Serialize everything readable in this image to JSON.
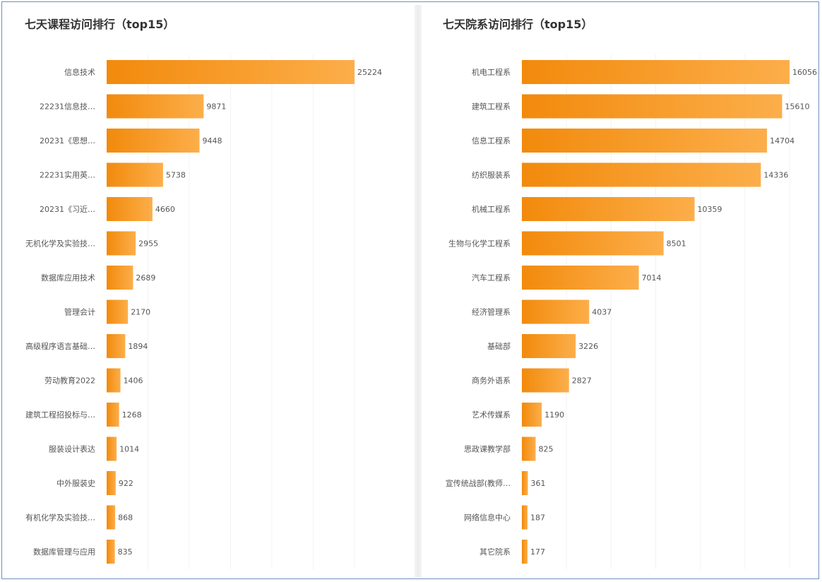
{
  "colors": {
    "bar_start": "#f28a0c",
    "bar_end": "#fcae4a",
    "label": "#555555",
    "title": "#333333"
  },
  "chart_data": [
    {
      "type": "bar",
      "orientation": "horizontal",
      "title": "七天课程访问排行（top15）",
      "categories": [
        "信息技术",
        "22231信息技…",
        "20231《思想…",
        "22231实用英…",
        "20231《习近…",
        "无机化学及实验技…",
        "数据库应用技术",
        "管理会计",
        "高级程序语言基础…",
        "劳动教育2022",
        "建筑工程招投标与…",
        "服装设计表达",
        "中外服装史",
        "有机化学及实验技…",
        "数据库管理与应用"
      ],
      "values": [
        25224,
        9871,
        9448,
        5738,
        4660,
        2955,
        2689,
        2170,
        1894,
        1406,
        1268,
        1014,
        922,
        868,
        835
      ],
      "xlim": [
        0,
        25224
      ],
      "grid": true,
      "data_labels": true
    },
    {
      "type": "bar",
      "orientation": "horizontal",
      "title": "七天院系访问排行（top15）",
      "categories": [
        "机电工程系",
        "建筑工程系",
        "信息工程系",
        "纺织服装系",
        "机械工程系",
        "生物与化学工程系",
        "汽车工程系",
        "经济管理系",
        "基础部",
        "商务外语系",
        "艺术传媒系",
        "思政课教学部",
        "宣传统战部(教师…",
        "网络信息中心",
        "其它院系"
      ],
      "values": [
        16056,
        15610,
        14704,
        14336,
        10359,
        8501,
        7014,
        4037,
        3226,
        2827,
        1190,
        825,
        361,
        187,
        177
      ],
      "xlim": [
        0,
        16056
      ],
      "grid": true,
      "data_labels": true
    }
  ]
}
